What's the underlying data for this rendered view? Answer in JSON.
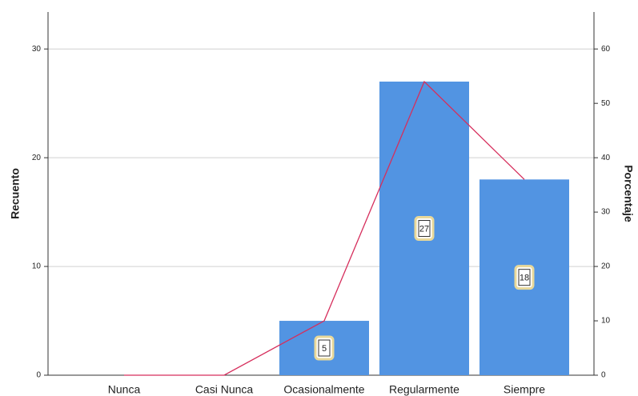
{
  "chart_data": {
    "type": "bar",
    "categories": [
      "Nunca",
      "Casi Nunca",
      "Ocasionalmente",
      "Regularmente",
      "Siempre"
    ],
    "series": [
      {
        "name": "Recuento",
        "color": "#5294e2",
        "values": [
          0,
          0,
          5,
          27,
          18
        ]
      },
      {
        "name": "Porcentaje",
        "color": "#d62e5c",
        "values": [
          0,
          0,
          10,
          54,
          36
        ],
        "axis": "y2",
        "type": "line"
      }
    ],
    "ylabel": "Recuento",
    "y2label": "Porcentaje",
    "ylim": [
      0,
      33.4
    ],
    "yticks": [
      0,
      10,
      20,
      30
    ],
    "y2lim": [
      0,
      66.8
    ],
    "y2ticks": [
      0,
      10,
      20,
      30,
      40,
      50,
      60
    ],
    "grid": true
  }
}
